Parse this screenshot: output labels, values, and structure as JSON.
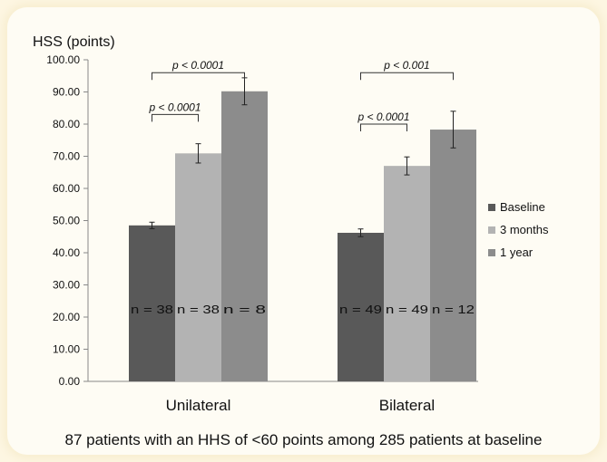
{
  "chart_data": {
    "type": "bar",
    "ylabel": "HSS (points)",
    "ylim": [
      0,
      100
    ],
    "ytick_step": 10,
    "ytick_labels": [
      "0.00",
      "10.00",
      "20.00",
      "30.00",
      "40.00",
      "50.00",
      "60.00",
      "70.00",
      "80.00",
      "90.00",
      "100.00"
    ],
    "grid": false,
    "legend_position": "right",
    "categories": [
      "Unilateral",
      "Bilateral"
    ],
    "series": [
      {
        "name": "Baseline",
        "color": "#595959",
        "values": [
          48.5,
          46.2
        ],
        "errors": [
          1.0,
          1.2
        ],
        "n_labels": [
          "n = 38",
          "n = 49"
        ]
      },
      {
        "name": "3 months",
        "color": "#b3b3b3",
        "values": [
          70.9,
          67.0
        ],
        "errors": [
          3.0,
          2.8
        ],
        "n_labels": [
          "n = 38",
          "n = 49"
        ]
      },
      {
        "name": "1 year",
        "color": "#8c8c8c",
        "values": [
          90.2,
          78.3
        ],
        "errors": [
          4.2,
          5.7
        ],
        "n_labels": [
          "n = 8",
          "n = 12"
        ]
      }
    ],
    "annotations": [
      {
        "category": 0,
        "from_series": 0,
        "to_series": 1,
        "text": "p < 0.0001",
        "level": 83
      },
      {
        "category": 0,
        "from_series": 0,
        "to_series": 2,
        "text": "p < 0.0001",
        "level": 96
      },
      {
        "category": 1,
        "from_series": 0,
        "to_series": 1,
        "text": "p < 0.0001",
        "level": 80
      },
      {
        "category": 1,
        "from_series": 0,
        "to_series": 2,
        "text": "p < 0.001",
        "level": 96
      }
    ],
    "caption": "87 patients with an HHS of <60 points among 285 patients at baseline"
  }
}
